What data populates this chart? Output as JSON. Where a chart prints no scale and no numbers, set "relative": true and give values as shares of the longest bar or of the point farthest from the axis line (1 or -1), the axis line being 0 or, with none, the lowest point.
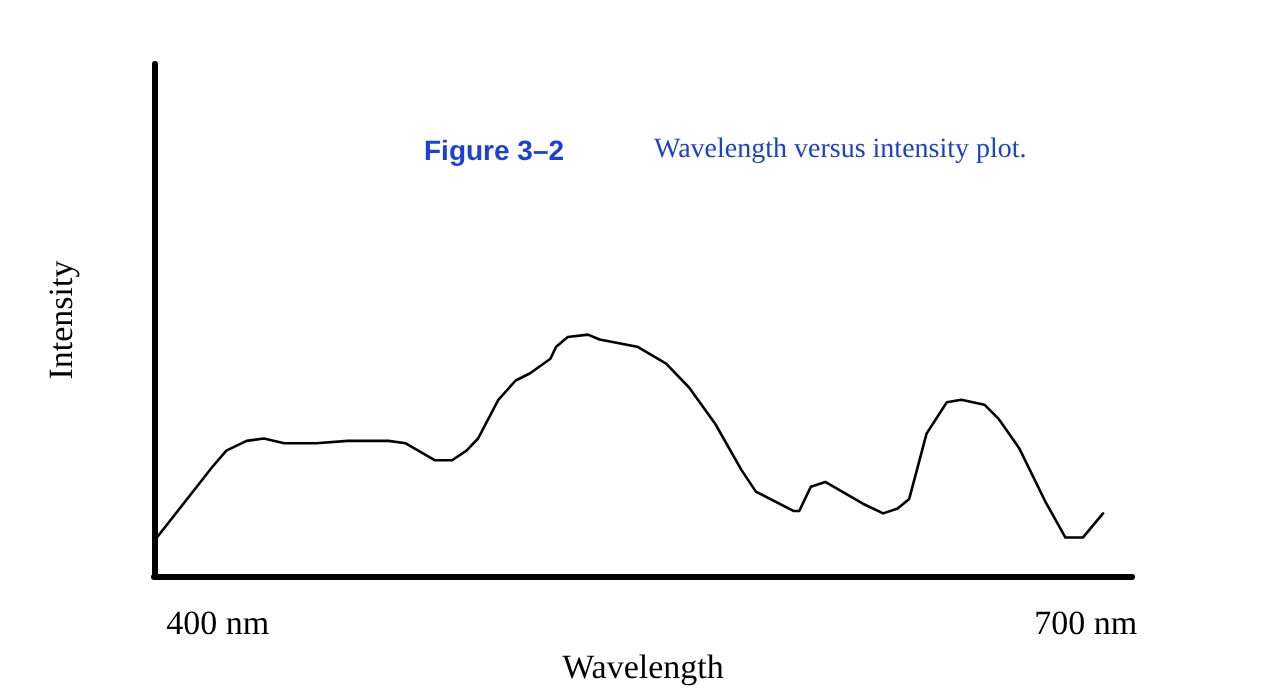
{
  "chart_data": {
    "type": "line",
    "title": "Figure 3–2",
    "subtitle": "Wavelength versus intensity plot.",
    "xlabel": "Wavelength",
    "ylabel": "Intensity",
    "relative": true,
    "xlim": [
      378,
      716
    ],
    "xticks": [
      {
        "value": 400,
        "label": "400 nm"
      },
      {
        "value": 700,
        "label": "700 nm"
      }
    ],
    "marker": "none",
    "line_style": "solid",
    "series": [
      {
        "color": "#000000",
        "x": [
          379,
          398,
          403,
          410,
          416,
          423,
          434,
          445,
          459,
          465,
          475,
          481,
          486,
          490,
          497,
          503,
          508,
          515,
          517,
          521,
          528,
          532,
          545,
          555,
          563,
          572,
          581,
          586,
          599,
          601,
          605,
          610,
          623,
          630,
          635,
          639,
          645,
          652,
          657,
          665,
          670,
          677,
          686,
          693,
          699,
          706
        ],
        "values": [
          0.16,
          0.45,
          0.52,
          0.56,
          0.57,
          0.55,
          0.55,
          0.56,
          0.56,
          0.55,
          0.48,
          0.48,
          0.52,
          0.57,
          0.73,
          0.81,
          0.84,
          0.9,
          0.95,
          0.99,
          1.0,
          0.98,
          0.95,
          0.88,
          0.78,
          0.63,
          0.44,
          0.35,
          0.27,
          0.27,
          0.37,
          0.39,
          0.3,
          0.26,
          0.28,
          0.32,
          0.59,
          0.72,
          0.73,
          0.71,
          0.65,
          0.53,
          0.31,
          0.16,
          0.16,
          0.26
        ]
      }
    ]
  }
}
